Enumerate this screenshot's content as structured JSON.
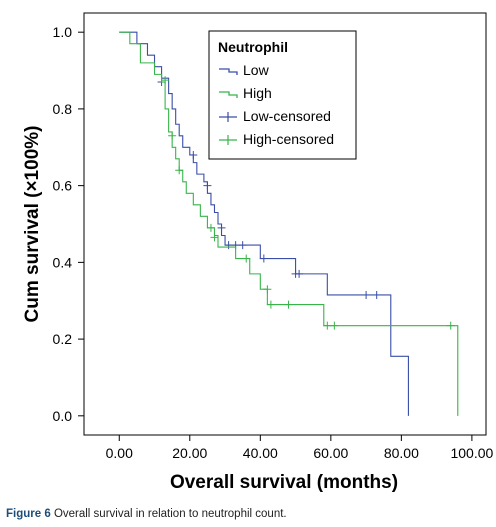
{
  "chart_data": {
    "type": "line",
    "subtype": "kaplan-meier",
    "xlabel": "Overall survival (months)",
    "ylabel": "Cum survival (×100%)",
    "xlim": [
      -10,
      104
    ],
    "ylim": [
      -0.05,
      1.05
    ],
    "xticks": [
      0,
      20,
      40,
      60,
      80,
      100
    ],
    "xtick_labels": [
      "0.00",
      "20.00",
      "40.00",
      "60.00",
      "80.00",
      "100.00"
    ],
    "yticks": [
      0,
      0.2,
      0.4,
      0.6,
      0.8,
      1.0
    ],
    "ytick_labels": [
      "0.0",
      "0.2",
      "0.4",
      "0.6",
      "0.8",
      "1.0"
    ],
    "grid": false,
    "legend": {
      "title": "Neutrophil",
      "placement": "top-right",
      "entries": [
        "Low",
        "High",
        "Low-censored",
        "High-censored"
      ]
    },
    "series": [
      {
        "name": "Low",
        "color": "#3a4ea8",
        "steps": [
          [
            0,
            1.0
          ],
          [
            5,
            0.97
          ],
          [
            8,
            0.94
          ],
          [
            10,
            0.91
          ],
          [
            12,
            0.88
          ],
          [
            14,
            0.84
          ],
          [
            15,
            0.8
          ],
          [
            16,
            0.76
          ],
          [
            17,
            0.73
          ],
          [
            18,
            0.7
          ],
          [
            20,
            0.68
          ],
          [
            21,
            0.66
          ],
          [
            22,
            0.63
          ],
          [
            24,
            0.61
          ],
          [
            25,
            0.58
          ],
          [
            26,
            0.55
          ],
          [
            27,
            0.53
          ],
          [
            28,
            0.5
          ],
          [
            29,
            0.47
          ],
          [
            30,
            0.445
          ],
          [
            40,
            0.41
          ],
          [
            50,
            0.37
          ],
          [
            59,
            0.315
          ],
          [
            77,
            0.155
          ],
          [
            82,
            0.0
          ]
        ],
        "end_x": 82,
        "censored": [
          [
            12,
            0.87
          ],
          [
            21,
            0.68
          ],
          [
            25,
            0.6
          ],
          [
            29,
            0.49
          ],
          [
            31,
            0.445
          ],
          [
            33,
            0.445
          ],
          [
            35,
            0.445
          ],
          [
            41,
            0.41
          ],
          [
            50,
            0.37
          ],
          [
            51,
            0.37
          ],
          [
            70,
            0.315
          ],
          [
            73,
            0.315
          ]
        ]
      },
      {
        "name": "High",
        "color": "#38b44a",
        "steps": [
          [
            0,
            1.0
          ],
          [
            3,
            0.97
          ],
          [
            6,
            0.92
          ],
          [
            10,
            0.89
          ],
          [
            12,
            0.87
          ],
          [
            13,
            0.8
          ],
          [
            14,
            0.74
          ],
          [
            15,
            0.7
          ],
          [
            16,
            0.67
          ],
          [
            17,
            0.64
          ],
          [
            18,
            0.61
          ],
          [
            19,
            0.58
          ],
          [
            21,
            0.55
          ],
          [
            23,
            0.52
          ],
          [
            25,
            0.49
          ],
          [
            27,
            0.47
          ],
          [
            28,
            0.44
          ],
          [
            33,
            0.41
          ],
          [
            37,
            0.37
          ],
          [
            40,
            0.33
          ],
          [
            42,
            0.29
          ],
          [
            58,
            0.235
          ],
          [
            96,
            0.0
          ]
        ],
        "end_x": 96,
        "censored": [
          [
            13,
            0.875
          ],
          [
            15,
            0.73
          ],
          [
            17,
            0.64
          ],
          [
            26,
            0.49
          ],
          [
            27,
            0.465
          ],
          [
            36,
            0.41
          ],
          [
            42,
            0.33
          ],
          [
            43,
            0.29
          ],
          [
            48,
            0.29
          ],
          [
            59,
            0.235
          ],
          [
            61,
            0.235
          ],
          [
            94,
            0.235
          ]
        ]
      }
    ]
  },
  "caption": {
    "label": "Figure 6",
    "text": "Overall survival in relation to neutrophil count."
  }
}
